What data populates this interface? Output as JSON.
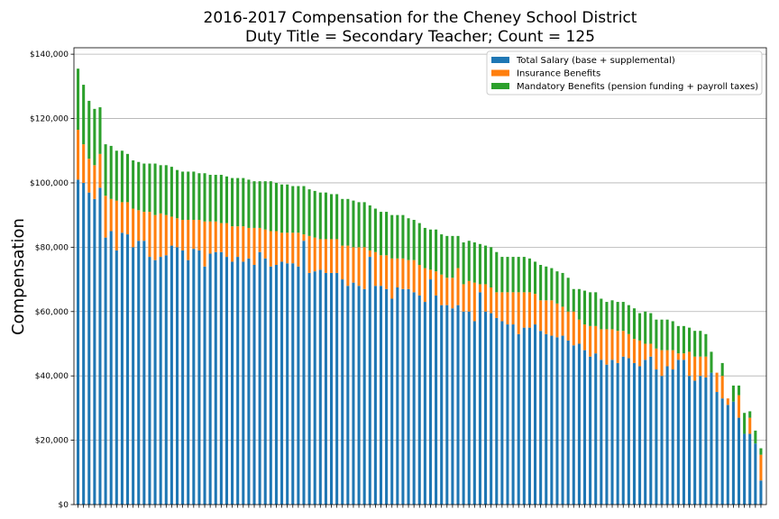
{
  "chart_data": {
    "type": "bar",
    "stacked": true,
    "title_line1": "2016-2017 Compensation for the Cheney School District",
    "title_line2": "Duty Title = Secondary Teacher; Count = 125",
    "ylabel": "Compensation",
    "xlabel": "",
    "ylim": [
      0,
      142000
    ],
    "yticks": [
      0,
      20000,
      40000,
      60000,
      80000,
      100000,
      120000,
      140000
    ],
    "ytick_labels": [
      "$0",
      "$20,000",
      "$40,000",
      "$60,000",
      "$80,000",
      "$100,000",
      "$120,000",
      "$140,000"
    ],
    "grid": "horizontal",
    "legend_position": "top-right",
    "colors": {
      "salary": "#1f77b4",
      "insurance": "#ff7f0e",
      "mandatory": "#2ca02c"
    },
    "series": [
      {
        "name": "Total Salary (base + supplemental)",
        "values": [
          101000,
          100000,
          97000,
          95000,
          98500,
          83000,
          85000,
          79000,
          84500,
          84000,
          80000,
          82000,
          82000,
          77000,
          76000,
          77000,
          77500,
          80500,
          80000,
          79000,
          76000,
          79500,
          79000,
          74000,
          78000,
          78500,
          78500,
          77000,
          75500,
          77000,
          75500,
          76500,
          74500,
          78500,
          76500,
          74000,
          74500,
          75500,
          75000,
          75000,
          74000,
          82000,
          72000,
          72500,
          73000,
          72000,
          72000,
          72000,
          70000,
          68000,
          69000,
          68000,
          67000,
          77000,
          68000,
          68000,
          67000,
          64000,
          67500,
          67000,
          67000,
          66000,
          65000,
          63000,
          70000,
          65000,
          62000,
          62000,
          61000,
          62000,
          60000,
          60000,
          57000,
          66000,
          60000,
          59500,
          58000,
          57000,
          56000,
          56000,
          53000,
          55000,
          55000,
          56000,
          54000,
          53000,
          52500,
          52000,
          52500,
          51000,
          49500,
          50000,
          48000,
          46000,
          47000,
          45000,
          43500,
          45000,
          44000,
          46000,
          45500,
          44000,
          43000,
          45000,
          46000,
          42000,
          40000,
          43000,
          42000,
          45000,
          45000,
          40000,
          38500,
          40000,
          39500,
          41000,
          35000,
          33000,
          31000,
          32000,
          27000,
          22000,
          22000,
          19000,
          7500
        ]
      },
      {
        "name": "Insurance Benefits",
        "values": [
          15500,
          12000,
          10500,
          10500,
          10500,
          13000,
          10000,
          15500,
          9500,
          10000,
          12000,
          9500,
          9000,
          14000,
          14000,
          13500,
          12500,
          9000,
          9000,
          9500,
          12500,
          9000,
          9500,
          14000,
          10000,
          9500,
          9000,
          10500,
          11000,
          9500,
          11000,
          9500,
          11500,
          7500,
          9000,
          11000,
          10500,
          9000,
          9500,
          9500,
          10500,
          2000,
          11500,
          10500,
          9500,
          10500,
          10500,
          10500,
          10500,
          12500,
          11000,
          12000,
          13000,
          2000,
          10500,
          9500,
          10500,
          12500,
          9000,
          9500,
          9000,
          10000,
          9500,
          10500,
          3000,
          7500,
          9500,
          8500,
          9500,
          11500,
          8500,
          9500,
          12000,
          2500,
          8500,
          8000,
          8000,
          9000,
          10000,
          10000,
          13000,
          11000,
          11000,
          9500,
          9500,
          10500,
          11000,
          10500,
          9000,
          9000,
          10500,
          7500,
          8000,
          9500,
          8500,
          9500,
          11000,
          9500,
          10000,
          8000,
          7500,
          7500,
          8000,
          5000,
          4000,
          6500,
          8000,
          5000,
          6000,
          2000,
          2000,
          7500,
          7500,
          6000,
          6500,
          0,
          6000,
          7000,
          2000,
          0,
          7000,
          0,
          5000,
          0,
          8000
        ]
      },
      {
        "name": "Mandatory Benefits (pension funding + payroll taxes)",
        "values": [
          19000,
          18500,
          18000,
          17500,
          14500,
          16000,
          16500,
          15500,
          16000,
          15000,
          15000,
          15000,
          15000,
          15000,
          16000,
          15000,
          15500,
          15500,
          15000,
          15000,
          15000,
          15000,
          14500,
          15000,
          14500,
          14500,
          15000,
          14500,
          15000,
          15000,
          15000,
          15000,
          14500,
          14500,
          15000,
          15500,
          15000,
          15000,
          15000,
          14500,
          14500,
          15000,
          14500,
          14500,
          14500,
          14500,
          14000,
          14000,
          14500,
          14500,
          14500,
          14000,
          14000,
          14000,
          13500,
          13500,
          13500,
          13500,
          13500,
          13500,
          13000,
          12500,
          13000,
          12500,
          12500,
          13000,
          12500,
          13000,
          13000,
          10000,
          13000,
          12500,
          12500,
          12500,
          12000,
          12500,
          12500,
          11000,
          11000,
          11000,
          11000,
          11000,
          10500,
          10000,
          11000,
          10500,
          10000,
          10000,
          10500,
          10500,
          7000,
          9500,
          10500,
          10500,
          10500,
          9500,
          8500,
          9000,
          9000,
          9000,
          9000,
          9500,
          8500,
          10000,
          9500,
          9000,
          9500,
          9500,
          9000,
          8500,
          8500,
          7500,
          8000,
          8000,
          7000,
          6500,
          0,
          4000,
          0,
          5000,
          3000,
          6500,
          2000,
          4000,
          2000
        ]
      }
    ]
  }
}
